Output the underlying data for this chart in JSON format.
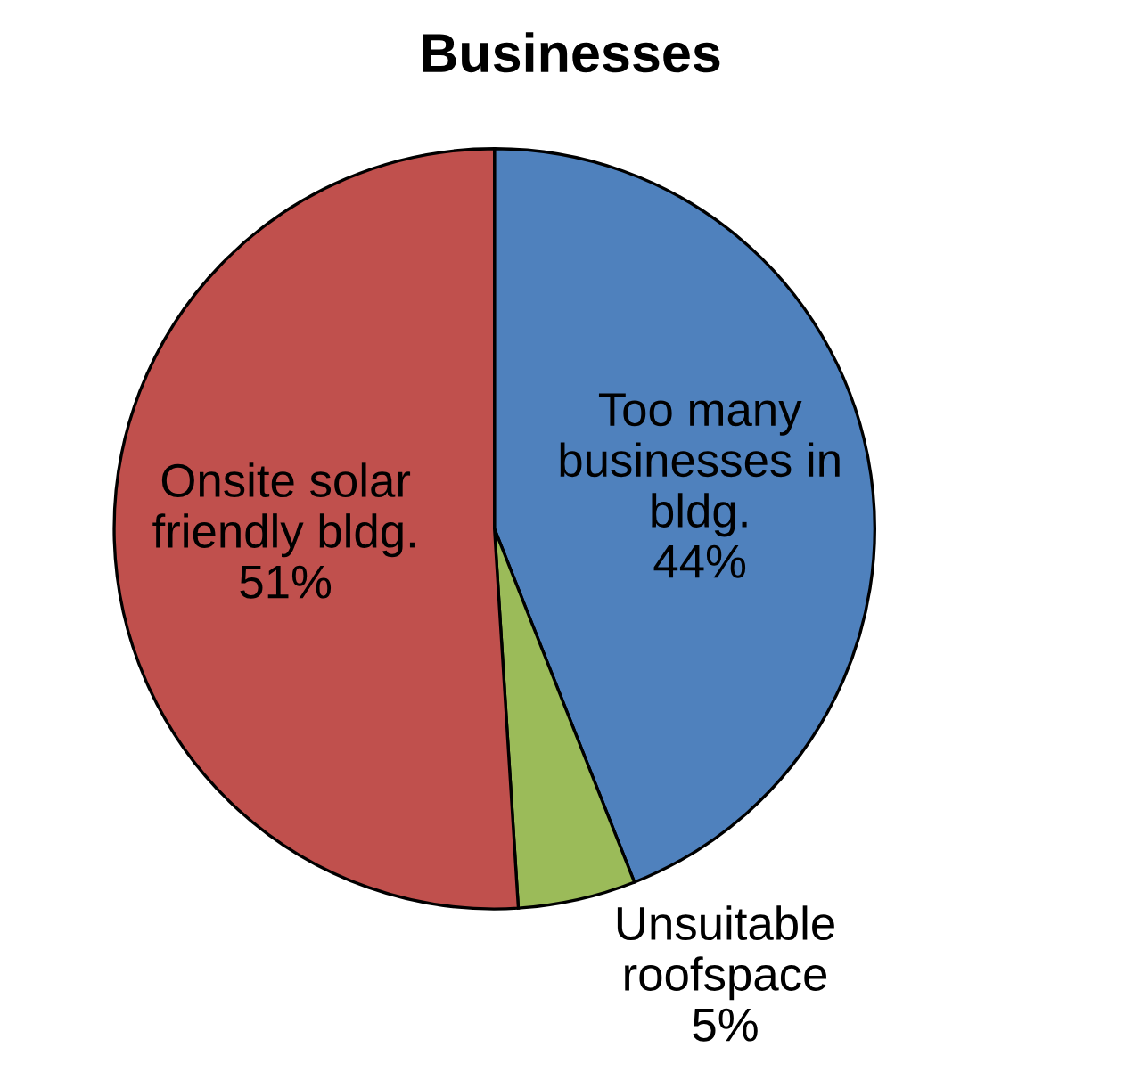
{
  "chart_data": {
    "type": "pie",
    "title": "Businesses",
    "categories": [
      "Too many\nbusinesses in\nbldg.",
      "Unsuitable\nroofspace",
      "Onsite solar\nfriendly bldg."
    ],
    "values": [
      44,
      5,
      51
    ],
    "value_labels": [
      "44%",
      "5%",
      "51%"
    ],
    "colors": [
      "#4f81bd",
      "#9bbb59",
      "#c0504d"
    ],
    "legend": false
  }
}
